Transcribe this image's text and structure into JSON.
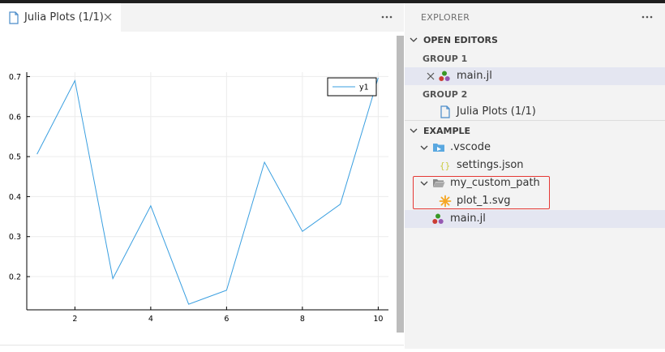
{
  "editor": {
    "tab_title": "Julia Plots (1/1)"
  },
  "explorer": {
    "title": "EXPLORER",
    "open_editors": {
      "header": "OPEN EDITORS",
      "group1": {
        "label": "GROUP 1",
        "file": "main.jl"
      },
      "group2": {
        "label": "GROUP 2",
        "file": "Julia Plots (1/1)"
      }
    },
    "workspace": {
      "header": "EXAMPLE",
      "vscode_folder": ".vscode",
      "settings_file": "settings.json",
      "custom_folder": "my_custom_path",
      "plot_file": "plot_1.svg",
      "main_file": "main.jl"
    }
  },
  "colors": {
    "line": "#3a9fe0",
    "selection": "#e4e6f1",
    "highlight_box": "#e53935",
    "julia_red": "#cb3c33",
    "julia_green": "#389826",
    "julia_purple": "#9558b2",
    "svg_icon": "#f5a623",
    "json_icon": "#cbcb41"
  },
  "chart_data": {
    "type": "line",
    "x": [
      1,
      2,
      3,
      4,
      5,
      6,
      7,
      8,
      9,
      10
    ],
    "series": [
      {
        "name": "y1",
        "values": [
          0.506,
          0.69,
          0.195,
          0.377,
          0.131,
          0.166,
          0.486,
          0.313,
          0.381,
          0.697
        ]
      }
    ],
    "xlim": [
      0.73,
      10.27
    ],
    "ylim": [
      0.117,
      0.711
    ],
    "xticks": [
      2,
      4,
      6,
      8,
      10
    ],
    "yticks": [
      0.2,
      0.3,
      0.4,
      0.5,
      0.6,
      0.7
    ],
    "xtick_labels": [
      "2",
      "4",
      "6",
      "8",
      "10"
    ],
    "ytick_labels": [
      "0.2",
      "0.3",
      "0.4",
      "0.5",
      "0.6",
      "0.7"
    ],
    "grid": true,
    "legend": "top-right"
  }
}
